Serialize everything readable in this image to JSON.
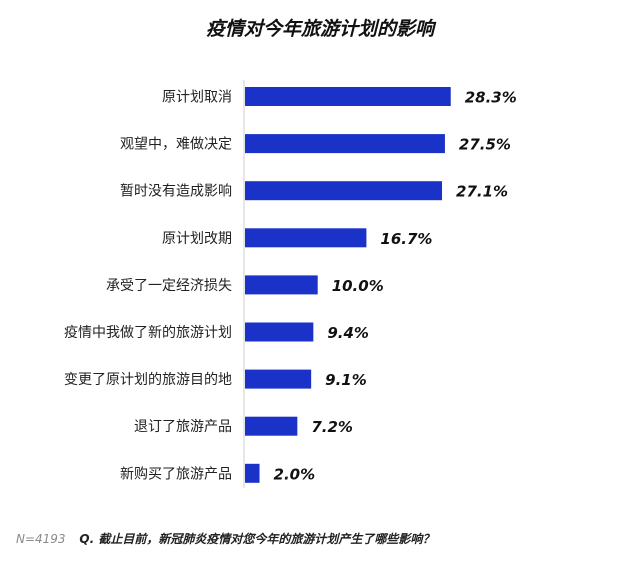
{
  "chart_data": {
    "type": "bar",
    "orientation": "horizontal",
    "title": "疫情对今年旅游计划的影响",
    "categories": [
      "原计划取消",
      "观望中，难做决定",
      "暂时没有造成影响",
      "原计划改期",
      "承受了一定经济损失",
      "疫情中我做了新的旅游计划",
      "变更了原计划的旅游目的地",
      "退订了旅游产品",
      "新购买了旅游产品"
    ],
    "values": [
      28.3,
      27.5,
      27.1,
      16.7,
      10.0,
      9.4,
      9.1,
      7.2,
      2.0
    ],
    "value_labels": [
      "28.3%",
      "27.5%",
      "27.1%",
      "16.7%",
      "10.0%",
      "9.4%",
      "9.1%",
      "7.2%",
      "2.0%"
    ],
    "bar_color": "#1a32c8",
    "xlim": [
      0,
      30
    ],
    "grid": false,
    "legend": "none"
  },
  "footnote": {
    "sample": "N=4193",
    "question": "Q. 截止目前，新冠肺炎疫情对您今年的旅游计划产生了哪些影响？"
  }
}
